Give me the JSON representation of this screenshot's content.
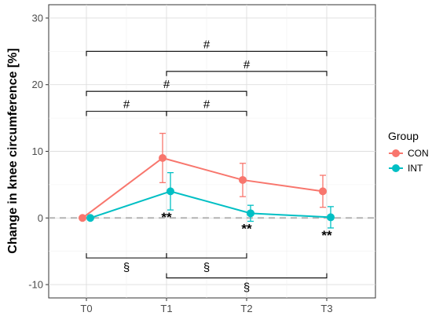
{
  "chart_data": {
    "type": "line",
    "xlabel": "",
    "ylabel": "Change in knee circumference [%]",
    "categories": [
      "T0",
      "T1",
      "T2",
      "T3"
    ],
    "ylim": [
      -12,
      32
    ],
    "yticks": [
      -10,
      0,
      10,
      20,
      30
    ],
    "grid": true,
    "reference_line": 0,
    "legend": {
      "title": "Group",
      "position": "right"
    },
    "series": [
      {
        "name": "CON",
        "color": "#F8766D",
        "values": [
          0,
          9.0,
          5.7,
          4.0
        ],
        "error": [
          0,
          3.7,
          2.5,
          2.4
        ]
      },
      {
        "name": "INT",
        "color": "#00BFC4",
        "values": [
          0,
          4.0,
          0.7,
          0.1
        ],
        "error": [
          0,
          2.8,
          1.2,
          1.6
        ]
      }
    ],
    "star_annotations": [
      {
        "at": "T1",
        "label": "**"
      },
      {
        "at": "T2",
        "label": "**"
      },
      {
        "at": "T3",
        "label": "**"
      }
    ],
    "brackets_above": [
      {
        "from": "T0",
        "to": "T3",
        "y": 25,
        "label": "#"
      },
      {
        "from": "T1",
        "to": "T3",
        "y": 22,
        "label": "#"
      },
      {
        "from": "T0",
        "to": "T2",
        "y": 19,
        "label": "#"
      },
      {
        "from": "T0",
        "to": "T1",
        "y": 16,
        "label": "#"
      },
      {
        "from": "T1",
        "to": "T2",
        "y": 16,
        "label": "#"
      }
    ],
    "brackets_below": [
      {
        "from": "T0",
        "to": "T1",
        "y": -6,
        "label": "§"
      },
      {
        "from": "T1",
        "to": "T2",
        "y": -6,
        "label": "§"
      },
      {
        "from": "T1",
        "to": "T3",
        "y": -9,
        "label": "§"
      }
    ]
  }
}
